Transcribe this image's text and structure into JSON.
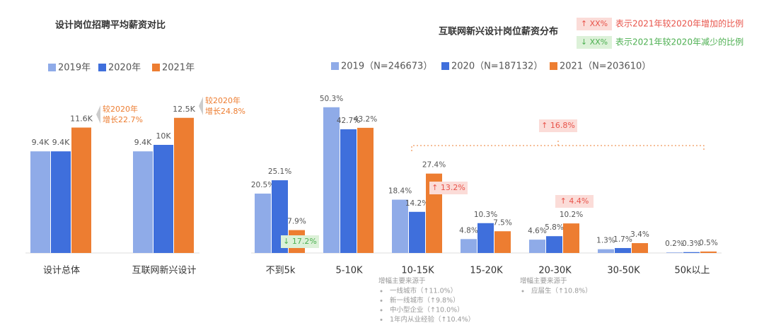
{
  "chart_data": [
    {
      "type": "bar",
      "title": "设计岗位招聘平均薪资对比",
      "categories": [
        "设计总体",
        "互联网新兴设计"
      ],
      "series": [
        {
          "name": "2019年",
          "color": "#8fabe8",
          "values": [
            9.4,
            9.4
          ],
          "value_labels": [
            "9.4K",
            "9.4K"
          ]
        },
        {
          "name": "2020年",
          "color": "#3f6fdc",
          "values": [
            9.4,
            10
          ],
          "value_labels": [
            "9.4K",
            "10K"
          ]
        },
        {
          "name": "2021年",
          "color": "#ed7d31",
          "values": [
            11.6,
            12.5
          ],
          "value_labels": [
            "11.6K",
            "12.5K"
          ]
        }
      ],
      "annotations": [
        {
          "lines": [
            "较2020年",
            "增长22.7%"
          ],
          "color": "#ed7d31"
        },
        {
          "lines": [
            "较2020年",
            "增长24.8%"
          ],
          "color": "#ed7d31"
        }
      ]
    },
    {
      "type": "bar",
      "title": "互联网新兴设计岗位薪资分布",
      "categories": [
        "不到5k",
        "5-10K",
        "10-15K",
        "15-20K",
        "20-30K",
        "30-50K",
        "50k以上"
      ],
      "series": [
        {
          "name": "2019（N=246673）",
          "color": "#8fabe8",
          "values": [
            20.5,
            50.3,
            18.4,
            4.8,
            4.6,
            1.3,
            0.2
          ],
          "value_labels": [
            "20.5%",
            "50.3%",
            "18.4%",
            "4.8%",
            "4.6%",
            "1.3%",
            "0.2%"
          ]
        },
        {
          "name": "2020（N=187132）",
          "color": "#3f6fdc",
          "values": [
            25.1,
            42.7,
            14.2,
            10.3,
            5.8,
            1.7,
            0.3
          ],
          "value_labels": [
            "25.1%",
            "42.7%",
            "14.2%",
            "10.3%",
            "5.8%",
            "1.7%",
            "0.3%"
          ]
        },
        {
          "name": "2021（N=203610）",
          "color": "#ed7d31",
          "values": [
            7.9,
            43.2,
            27.4,
            7.5,
            10.2,
            3.4,
            0.5
          ],
          "value_labels": [
            "7.9%",
            "43.2%",
            "27.4%",
            "7.5%",
            "10.2%",
            "3.4%",
            "0.5%"
          ]
        }
      ],
      "legend_notes": [
        {
          "marker": "↑ XX%",
          "text": "表示2021年较2020年增加的比例",
          "color": "#e8534a",
          "background": "#fbdcd8"
        },
        {
          "marker": "↓ XX%",
          "text": "表示2021年较2020年减少的比例",
          "color": "#4caf50",
          "background": "#dcf1d8"
        }
      ],
      "changes": [
        {
          "text": "↓ 17.2%",
          "color": "#4caf50",
          "background": "#dcf1d8"
        },
        {
          "text": "↑ 13.2%",
          "color": "#e8534a",
          "background": "#fbdcd8"
        },
        {
          "text": "↑ 4.4%",
          "color": "#e8534a",
          "background": "#fbdcd8"
        },
        {
          "text": "↑ 16.8%",
          "color": "#e8534a",
          "background": "#fbdcd8"
        }
      ],
      "notes": [
        {
          "heading": "增幅主要来源于",
          "items": [
            "一线城市（↑11.0%）",
            "新一线城市（↑9.8%）",
            "中小型企业（↑10.0%）",
            "1年内从业经验（↑10.4%）"
          ]
        },
        {
          "heading": "增幅主要来源于",
          "items": [
            "应届生（↑10.8%）"
          ]
        }
      ]
    }
  ]
}
